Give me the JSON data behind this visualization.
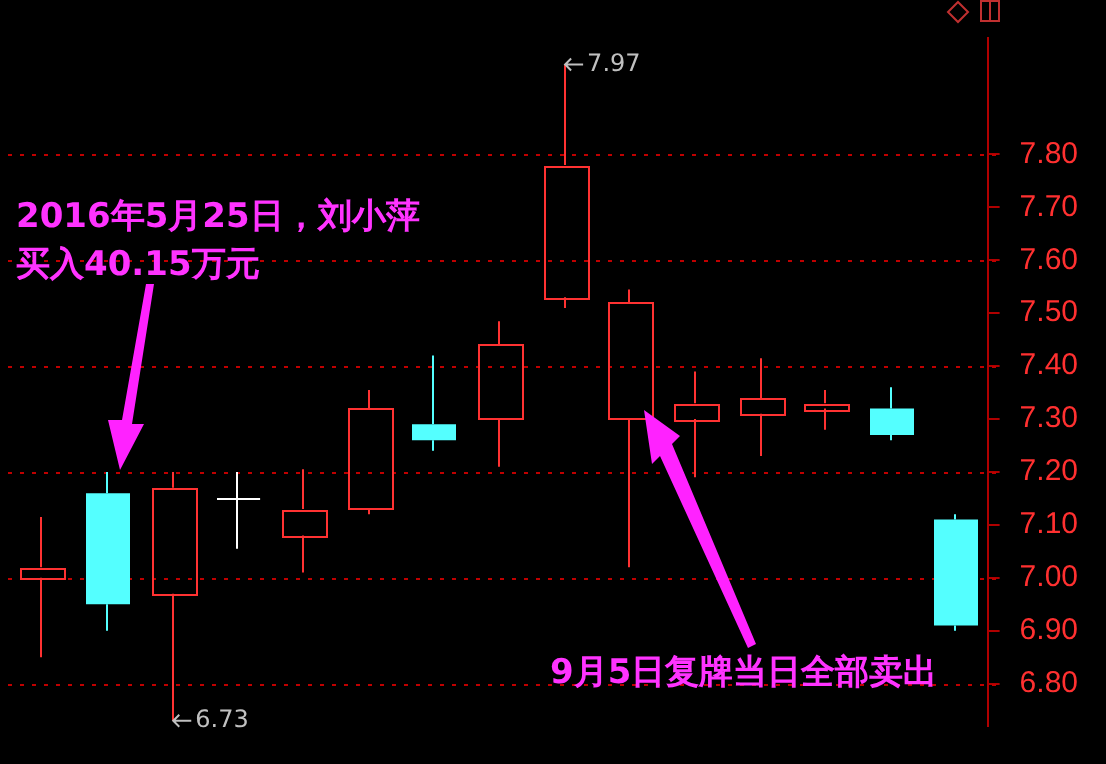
{
  "chart_data": {
    "type": "candlestick",
    "categories": [
      null,
      null,
      null,
      null,
      null,
      null,
      null,
      null,
      null,
      null,
      null,
      null,
      null,
      null,
      null
    ],
    "ohlc": [
      [
        7.0,
        7.115,
        6.85,
        7.02
      ],
      [
        7.16,
        7.2,
        6.9,
        6.95
      ],
      [
        6.97,
        7.2,
        6.73,
        7.17
      ],
      [
        7.15,
        7.2,
        7.055,
        7.15
      ],
      [
        7.08,
        7.205,
        7.01,
        7.13
      ],
      [
        7.13,
        7.355,
        7.12,
        7.32
      ],
      [
        7.29,
        7.42,
        7.24,
        7.26
      ],
      [
        7.3,
        7.485,
        7.21,
        7.44
      ],
      [
        7.53,
        7.97,
        7.51,
        7.78
      ],
      [
        7.3,
        7.545,
        7.02,
        7.52
      ],
      [
        7.3,
        7.39,
        7.19,
        7.33
      ],
      [
        7.31,
        7.415,
        7.23,
        7.34
      ],
      [
        7.32,
        7.355,
        7.28,
        7.33
      ],
      [
        7.32,
        7.36,
        7.26,
        7.27
      ],
      [
        7.11,
        7.12,
        6.9,
        6.91
      ]
    ],
    "colors": [
      "#ff3232",
      "#54ffff",
      "#ff3232",
      "#ffffff",
      "#ff3232",
      "#ff3232",
      "#54ffff",
      "#ff3232",
      "#ff3232",
      "#ff3232",
      "#ff3232",
      "#ff3232",
      "#ff3232",
      "#54ffff",
      "#54ffff"
    ],
    "ylim": [
      6.72,
      8.02
    ],
    "yticks": [
      {
        "value": 6.8,
        "label": "6.80"
      },
      {
        "value": 6.9,
        "label": "6.90"
      },
      {
        "value": 7.0,
        "label": "7.00"
      },
      {
        "value": 7.1,
        "label": "7.10"
      },
      {
        "value": 7.2,
        "label": "7.20"
      },
      {
        "value": 7.3,
        "label": "7.30"
      },
      {
        "value": 7.4,
        "label": "7.40"
      },
      {
        "value": 7.5,
        "label": "7.50"
      },
      {
        "value": 7.6,
        "label": "7.60"
      },
      {
        "value": 7.7,
        "label": "7.70"
      },
      {
        "value": 7.8,
        "label": "7.80"
      }
    ],
    "tick_labels": "y",
    "ref_lines": [
      {
        "axis": "y",
        "value": 6.8,
        "color": "#c00000",
        "line_style": "dotted"
      },
      {
        "axis": "y",
        "value": 7.0,
        "color": "#c00000",
        "line_style": "dotted"
      },
      {
        "axis": "y",
        "value": 7.2,
        "color": "#c00000",
        "line_style": "dotted"
      },
      {
        "axis": "y",
        "value": 7.4,
        "color": "#c00000",
        "line_style": "dotted"
      },
      {
        "axis": "y",
        "value": 7.6,
        "color": "#c00000",
        "line_style": "dotted"
      },
      {
        "axis": "y",
        "value": 7.8,
        "color": "#c00000",
        "line_style": "dotted"
      }
    ],
    "annotations": [
      "2016年5月25日，刘小萍",
      "买入40.15万元",
      "9月5日复牌当日全部卖出",
      "6.73",
      "7.97"
    ]
  }
}
